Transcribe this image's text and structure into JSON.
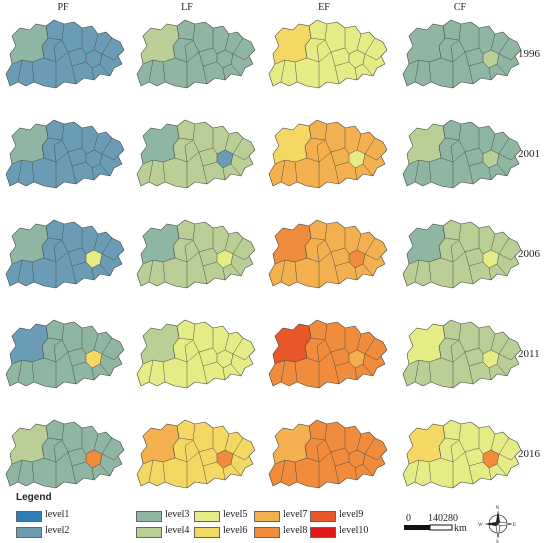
{
  "columns": [
    "PF",
    "LF",
    "EF",
    "CF"
  ],
  "years": [
    "1996",
    "2001",
    "2006",
    "2011",
    "2016"
  ],
  "legend": {
    "title": "Legend",
    "levels": [
      {
        "label": "level1",
        "color": "#2f7ebc"
      },
      {
        "label": "level2",
        "color": "#6a9db5"
      },
      {
        "label": "level3",
        "color": "#8fb6a2"
      },
      {
        "label": "level4",
        "color": "#b9cf96"
      },
      {
        "label": "level5",
        "color": "#e6ec85"
      },
      {
        "label": "level6",
        "color": "#f5d864"
      },
      {
        "label": "level7",
        "color": "#f4b04e"
      },
      {
        "label": "level8",
        "color": "#f08c3c"
      },
      {
        "label": "level9",
        "color": "#e8562a"
      },
      {
        "label": "level10",
        "color": "#e11818"
      }
    ]
  },
  "scale_bar": {
    "ticks": [
      "0",
      "140",
      "280"
    ],
    "unit": "km"
  },
  "compass": {
    "n": "N",
    "s": "S",
    "e": "E",
    "w": "W"
  },
  "maps": [
    [
      {
        "base": 2,
        "accent": 3,
        "highlight": 2
      },
      {
        "base": 3,
        "accent": 4,
        "highlight": 3
      },
      {
        "base": 5,
        "accent": 6,
        "highlight": 5
      },
      {
        "base": 3,
        "accent": 3,
        "highlight": 4
      }
    ],
    [
      {
        "base": 2,
        "accent": 3,
        "highlight": 2
      },
      {
        "base": 4,
        "accent": 3,
        "highlight": 2
      },
      {
        "base": 7,
        "accent": 6,
        "highlight": 5
      },
      {
        "base": 3,
        "accent": 4,
        "highlight": 4
      }
    ],
    [
      {
        "base": 2,
        "accent": 3,
        "highlight": 5
      },
      {
        "base": 4,
        "accent": 3,
        "highlight": 5
      },
      {
        "base": 7,
        "accent": 8,
        "highlight": 8
      },
      {
        "base": 4,
        "accent": 3,
        "highlight": 5
      }
    ],
    [
      {
        "base": 3,
        "accent": 2,
        "highlight": 6
      },
      {
        "base": 5,
        "accent": 4,
        "highlight": 5
      },
      {
        "base": 8,
        "accent": 9,
        "highlight": 7
      },
      {
        "base": 4,
        "accent": 5,
        "highlight": 5
      }
    ],
    [
      {
        "base": 3,
        "accent": 4,
        "highlight": 8
      },
      {
        "base": 6,
        "accent": 7,
        "highlight": 8
      },
      {
        "base": 8,
        "accent": 7,
        "highlight": 8
      },
      {
        "base": 5,
        "accent": 6,
        "highlight": 8
      }
    ]
  ]
}
